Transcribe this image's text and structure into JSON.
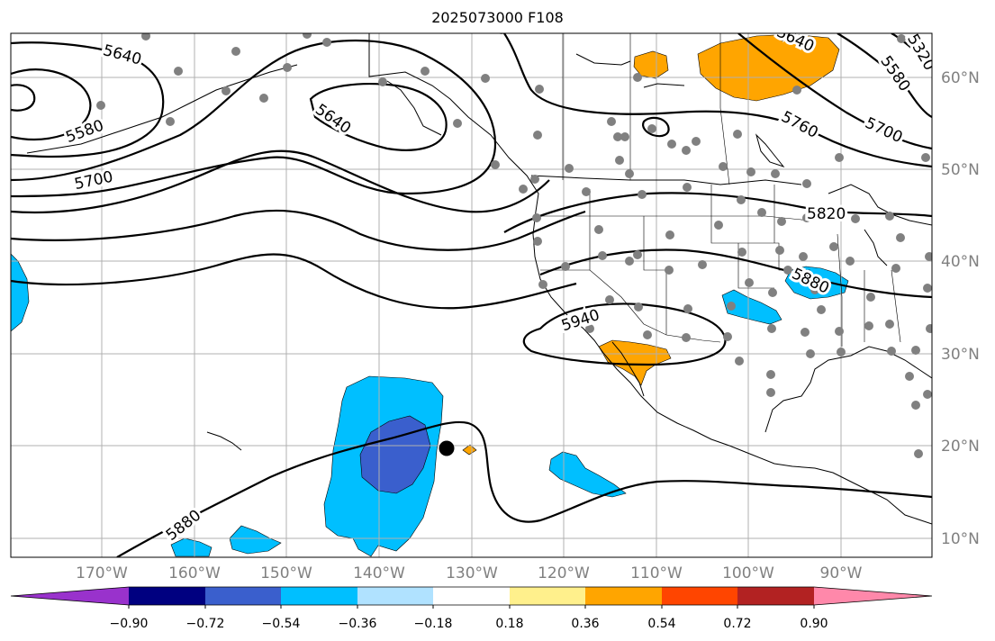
{
  "title": "2025073000 F108",
  "lon_labels": [
    "170°W",
    "160°W",
    "150°W",
    "140°W",
    "130°W",
    "120°W",
    "110°W",
    "100°W",
    "90°W"
  ],
  "lat_labels": [
    "60°N",
    "50°N",
    "40°N",
    "30°N",
    "20°N",
    "10°N"
  ],
  "contour_labels": [
    "5640",
    "5580",
    "5700",
    "5640",
    "5640",
    "5580",
    "5320",
    "5700",
    "5760",
    "5820",
    "5880",
    "5940",
    "5880"
  ],
  "colorbar": {
    "colors": [
      "#9932cc",
      "#000080",
      "#3a5fcd",
      "#00bfff",
      "#b0e2ff",
      "#ffffff",
      "#fff08c",
      "#ffa500",
      "#ff4500",
      "#b22222",
      "#ff88aa"
    ],
    "tick_labels": [
      "−0.90",
      "−0.72",
      "−0.54",
      "−0.36",
      "−0.18",
      "0.18",
      "0.36",
      "0.54",
      "0.72",
      "0.90"
    ]
  },
  "chart_data": {
    "type": "map",
    "title": "2025073000 F108",
    "xlim": [
      -180,
      -80
    ],
    "ylim": [
      8,
      65
    ],
    "grid": true,
    "contour_levels_labeled": [
      5580,
      5640,
      5700,
      5760,
      5820,
      5880,
      5940,
      5320
    ],
    "colorbar_bounds": [
      -0.9,
      -0.72,
      -0.54,
      -0.36,
      -0.18,
      0.18,
      0.36,
      0.54,
      0.72,
      0.9
    ],
    "marker": {
      "lon": -133,
      "lat": 20
    }
  }
}
